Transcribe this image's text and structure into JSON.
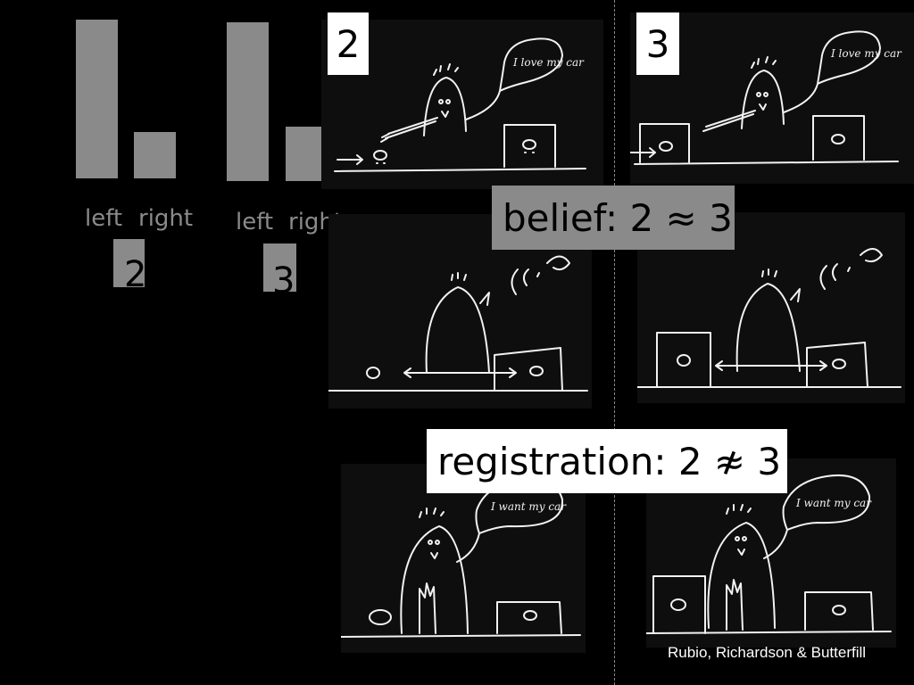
{
  "chart_data": [
    {
      "type": "bar",
      "categories": [
        "left",
        "right"
      ],
      "values": [
        100,
        35
      ],
      "condition": "2"
    },
    {
      "type": "bar",
      "categories": [
        "left",
        "right"
      ],
      "values": [
        100,
        40
      ],
      "condition": "3"
    }
  ],
  "panels": {
    "col2_number": "2",
    "col3_number": "3",
    "speech_love": "I love my car",
    "speech_want": "I want my car"
  },
  "labels": {
    "belief": "belief: 2 ≈ 3",
    "registration": "registration: 2 ≉ 3"
  },
  "credit": "Rubio, Richardson & Butterfill"
}
